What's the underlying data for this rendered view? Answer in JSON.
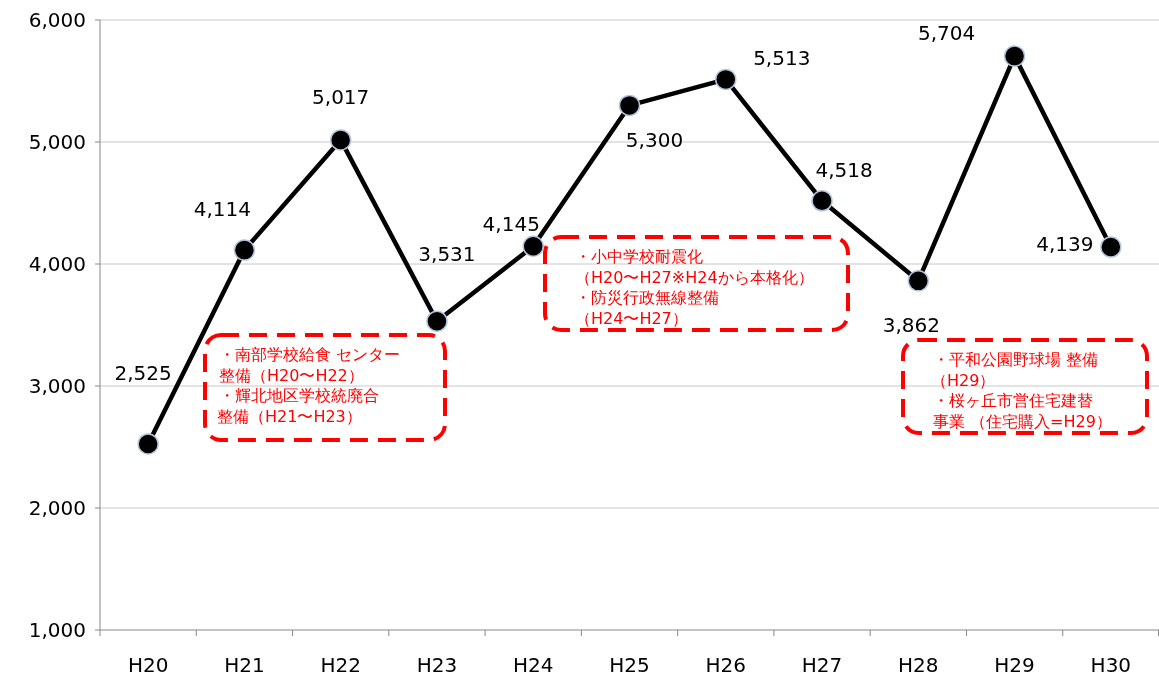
{
  "chart_data": {
    "type": "line",
    "categories": [
      "H20",
      "H21",
      "H22",
      "H23",
      "H24",
      "H25",
      "H26",
      "H27",
      "H28",
      "H29",
      "H30"
    ],
    "values": [
      2525,
      4114,
      5017,
      3531,
      4145,
      5300,
      5513,
      4518,
      3862,
      5704,
      4139
    ],
    "value_labels": [
      "2,525",
      "4,114",
      "5,017",
      "3,531",
      "4,145",
      "5,300",
      "5,513",
      "4,518",
      "3,862",
      "5,704",
      "4,139"
    ],
    "color": "#000000",
    "marker": "circle",
    "line_style": "solid",
    "grid": "y",
    "ylim": [
      1000,
      6000
    ],
    "yticks": [
      {
        "value": 1000,
        "label": "1,000"
      },
      {
        "value": 2000,
        "label": "2,000"
      },
      {
        "value": 3000,
        "label": "3,000"
      },
      {
        "value": 4000,
        "label": "4,000"
      },
      {
        "value": 5000,
        "label": "5,000"
      },
      {
        "value": 6000,
        "label": "6,000"
      }
    ],
    "annotations": [
      "・南部学校給食 センター",
      " 整備（H20〜H22）",
      "・輝北地区学校統廃合",
      "整備（H21〜H23）",
      "・小中学校耐震化",
      "（H20〜H27※H24から本格化）",
      "・防災行政無線整備",
      "（H24〜H27）",
      "・平和公園野球場 整備",
      "（H29）",
      "・桜ヶ丘市営住宅建替",
      "事業 （住宅購入=H29）"
    ]
  }
}
